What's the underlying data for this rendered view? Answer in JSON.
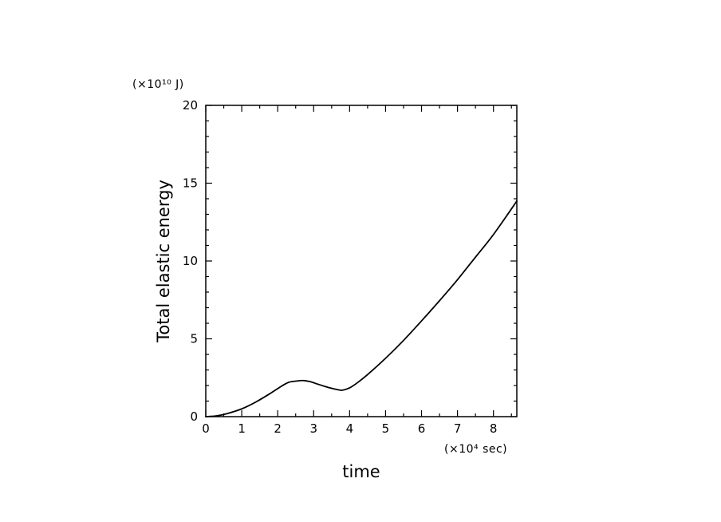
{
  "chart_data": {
    "type": "line",
    "title": "",
    "xlabel": "time",
    "ylabel": "Total elastic energy",
    "x_unit": "(×10⁴ sec)",
    "y_unit": "(×10¹⁰ J)",
    "xlim": [
      0,
      8.65
    ],
    "ylim": [
      0,
      20
    ],
    "x_ticks": [
      0,
      1,
      2,
      3,
      4,
      5,
      6,
      7,
      8
    ],
    "y_ticks": [
      0,
      5,
      10,
      15,
      20
    ],
    "grid": false,
    "series": [
      {
        "color": "#000000",
        "x": [
          0,
          0.3,
          0.6,
          1.0,
          1.4,
          1.8,
          2.1,
          2.3,
          2.5,
          2.7,
          2.9,
          3.1,
          3.3,
          3.5,
          3.7,
          3.8,
          4.0,
          4.2,
          4.5,
          5.0,
          5.5,
          6.0,
          6.5,
          7.0,
          7.5,
          8.0,
          8.65
        ],
        "y": [
          0,
          0.05,
          0.2,
          0.5,
          0.95,
          1.5,
          1.95,
          2.2,
          2.28,
          2.32,
          2.25,
          2.1,
          1.95,
          1.82,
          1.72,
          1.7,
          1.85,
          2.15,
          2.7,
          3.75,
          4.9,
          6.15,
          7.45,
          8.8,
          10.25,
          11.7,
          13.85
        ]
      }
    ]
  }
}
